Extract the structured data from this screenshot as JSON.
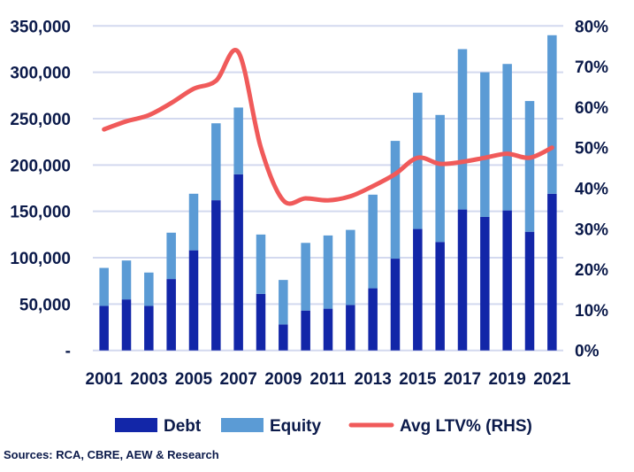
{
  "chart_data": {
    "type": "bar",
    "stacked": true,
    "categories": [
      "2001",
      "2002",
      "2003",
      "2004",
      "2005",
      "2006",
      "2007",
      "2008",
      "2009",
      "2010",
      "2011",
      "2012",
      "2013",
      "2014",
      "2015",
      "2016",
      "2017",
      "2018",
      "2019",
      "2020",
      "2021"
    ],
    "x_tick_labels": [
      "2001",
      "2003",
      "2005",
      "2007",
      "2009",
      "2011",
      "2013",
      "2015",
      "2017",
      "2019",
      "2021"
    ],
    "series": [
      {
        "name": "Debt",
        "type": "bar",
        "axis": "left",
        "color": "#1226a8",
        "values": [
          48000,
          55000,
          48000,
          77000,
          108000,
          162000,
          190000,
          61000,
          28000,
          43000,
          45000,
          49000,
          67000,
          99000,
          131000,
          117000,
          152000,
          144000,
          151000,
          128000,
          169000
        ]
      },
      {
        "name": "Equity",
        "type": "bar",
        "axis": "left",
        "color": "#5b9bd5",
        "values": [
          41000,
          42000,
          36000,
          50000,
          61000,
          83000,
          72000,
          64000,
          48000,
          73000,
          79000,
          81000,
          101000,
          127000,
          147000,
          137000,
          173000,
          156000,
          158000,
          141000,
          171000
        ]
      },
      {
        "name": "Avg LTV% (RHS)",
        "type": "line",
        "axis": "right",
        "color": "#f05a5a",
        "values": [
          54.5,
          56.5,
          58,
          61,
          64.5,
          66.5,
          73.5,
          50,
          37,
          37.5,
          37,
          38,
          40.5,
          43.5,
          47.5,
          46,
          46.5,
          47.5,
          48.5,
          47.5,
          50
        ]
      }
    ],
    "y_left": {
      "range": [
        0,
        350000
      ],
      "tick_labels": [
        "-",
        "50,000",
        "100,000",
        "150,000",
        "200,000",
        "250,000",
        "300,000",
        "350,000"
      ]
    },
    "y_right": {
      "range": [
        0,
        80
      ],
      "tick_labels": [
        "0%",
        "10%",
        "20%",
        "30%",
        "40%",
        "50%",
        "60%",
        "70%",
        "80%"
      ]
    },
    "grid": true,
    "legend_position": "bottom",
    "source": "Sources: RCA, CBRE, AEW & Research"
  }
}
